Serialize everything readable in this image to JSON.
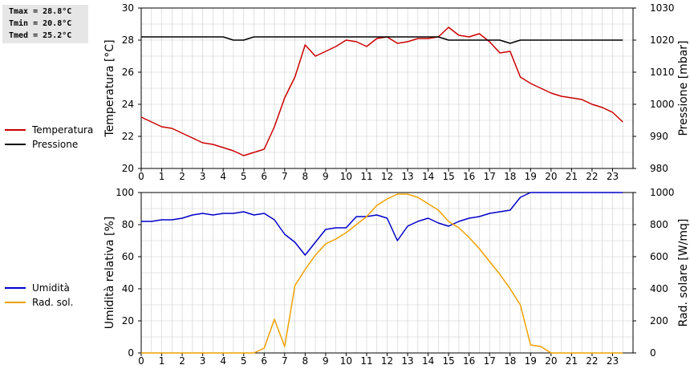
{
  "stats": {
    "tmax": "Tmax = 28.8°C",
    "tmin": "Tmin = 20.8°C",
    "tmed": "Tmed = 25.2°C"
  },
  "colors": {
    "temperatura": "#cc0000",
    "pressione": "#000000",
    "umidita": "#0000cc",
    "rad_sol": "#f0a000",
    "grid": "#cccccc"
  },
  "chart_data": [
    {
      "type": "line",
      "x_ticks": [
        0,
        1,
        2,
        3,
        4,
        5,
        6,
        7,
        8,
        9,
        10,
        11,
        12,
        13,
        14,
        15,
        16,
        17,
        18,
        19,
        20,
        21,
        22,
        23
      ],
      "xlim": [
        0,
        24
      ],
      "ylabel": "Temperatura [°C]",
      "ylim": [
        20,
        30
      ],
      "y_ticks": [
        20,
        22,
        24,
        26,
        28,
        30
      ],
      "y2label": "Pressione [mbar]",
      "y2lim": [
        980,
        1030
      ],
      "y2_ticks": [
        980,
        990,
        1000,
        1010,
        1020,
        1030
      ],
      "grid": true,
      "legend_position": "left",
      "series": [
        {
          "name": "Temperatura",
          "axis": "left",
          "x": [
            0,
            0.5,
            1,
            1.5,
            2,
            2.5,
            3,
            3.5,
            4,
            4.5,
            5,
            5.5,
            6,
            6.5,
            7,
            7.5,
            8,
            8.5,
            9,
            9.5,
            10,
            10.5,
            11,
            11.5,
            12,
            12.5,
            13,
            13.5,
            14,
            14.5,
            15,
            15.5,
            16,
            16.5,
            17,
            17.5,
            18,
            18.5,
            19,
            19.5,
            20,
            20.5,
            21,
            21.5,
            22,
            22.5,
            23,
            23.5
          ],
          "values": [
            23.2,
            22.9,
            22.6,
            22.5,
            22.2,
            21.9,
            21.6,
            21.5,
            21.3,
            21.1,
            20.8,
            21.0,
            21.2,
            22.6,
            24.4,
            25.7,
            27.7,
            27.0,
            27.3,
            27.6,
            28.0,
            27.9,
            27.6,
            28.1,
            28.2,
            27.8,
            27.9,
            28.1,
            28.1,
            28.2,
            28.8,
            28.3,
            28.2,
            28.4,
            27.9,
            27.2,
            27.3,
            25.7,
            25.3,
            25.0,
            24.7,
            24.5,
            24.4,
            24.3,
            24.0,
            23.8,
            23.5,
            22.9
          ]
        },
        {
          "name": "Pressione",
          "axis": "right",
          "x": [
            0,
            1,
            2,
            3,
            4,
            4.5,
            5,
            5.5,
            6,
            7,
            8,
            9,
            10,
            11,
            12,
            13,
            14,
            14.5,
            15,
            16,
            17,
            17.5,
            18,
            18.5,
            19,
            20,
            21,
            22,
            23,
            23.5
          ],
          "values": [
            1021,
            1021,
            1021,
            1021,
            1021,
            1020,
            1020,
            1021,
            1021,
            1021,
            1021,
            1021,
            1021,
            1021,
            1021,
            1021,
            1021,
            1021,
            1020,
            1020,
            1020,
            1020,
            1019,
            1020,
            1020,
            1020,
            1020,
            1020,
            1020,
            1020
          ]
        }
      ]
    },
    {
      "type": "line",
      "x_ticks": [
        0,
        1,
        2,
        3,
        4,
        5,
        6,
        7,
        8,
        9,
        10,
        11,
        12,
        13,
        14,
        15,
        16,
        17,
        18,
        19,
        20,
        21,
        22,
        23
      ],
      "xlim": [
        0,
        24
      ],
      "ylabel": "Umidità relativa [%]",
      "ylim": [
        0,
        100
      ],
      "y_ticks": [
        0,
        20,
        40,
        60,
        80,
        100
      ],
      "y2label": "Rad. solare [W/mq]",
      "y2lim": [
        0,
        1000
      ],
      "y2_ticks": [
        0,
        200,
        400,
        600,
        800,
        1000
      ],
      "grid": true,
      "legend_position": "left",
      "series": [
        {
          "name": "Umidità",
          "axis": "left",
          "x": [
            0,
            0.5,
            1,
            1.5,
            2,
            2.5,
            3,
            3.5,
            4,
            4.5,
            5,
            5.5,
            6,
            6.5,
            7,
            7.5,
            8,
            8.5,
            9,
            9.5,
            10,
            10.5,
            11,
            11.5,
            12,
            12.5,
            13,
            13.5,
            14,
            14.5,
            15,
            15.5,
            16,
            16.5,
            17,
            17.5,
            18,
            18.5,
            19,
            19.5,
            20,
            21,
            22,
            23,
            23.5
          ],
          "values": [
            82,
            82,
            83,
            83,
            84,
            86,
            87,
            86,
            87,
            87,
            88,
            86,
            87,
            83,
            74,
            69,
            61,
            69,
            77,
            78,
            78,
            85,
            85,
            86,
            84,
            70,
            79,
            82,
            84,
            81,
            79,
            82,
            84,
            85,
            87,
            88,
            89,
            97,
            100,
            100,
            100,
            100,
            100,
            100,
            100
          ]
        },
        {
          "name": "Rad. sol.",
          "axis": "right",
          "x": [
            0,
            1,
            2,
            3,
            4,
            5,
            5.5,
            6,
            6.5,
            7,
            7.5,
            8,
            8.5,
            9,
            9.5,
            10,
            10.5,
            11,
            11.5,
            12,
            12.5,
            13,
            13.5,
            14,
            14.5,
            15,
            15.5,
            16,
            16.5,
            17,
            17.5,
            18,
            18.5,
            19,
            19.5,
            20,
            21,
            22,
            23,
            23.5
          ],
          "values": [
            0,
            0,
            0,
            0,
            0,
            0,
            0,
            30,
            210,
            40,
            420,
            520,
            610,
            680,
            710,
            750,
            800,
            850,
            920,
            960,
            990,
            990,
            970,
            930,
            890,
            820,
            780,
            720,
            650,
            570,
            490,
            400,
            300,
            50,
            40,
            0,
            0,
            0,
            0,
            0
          ]
        }
      ]
    }
  ]
}
